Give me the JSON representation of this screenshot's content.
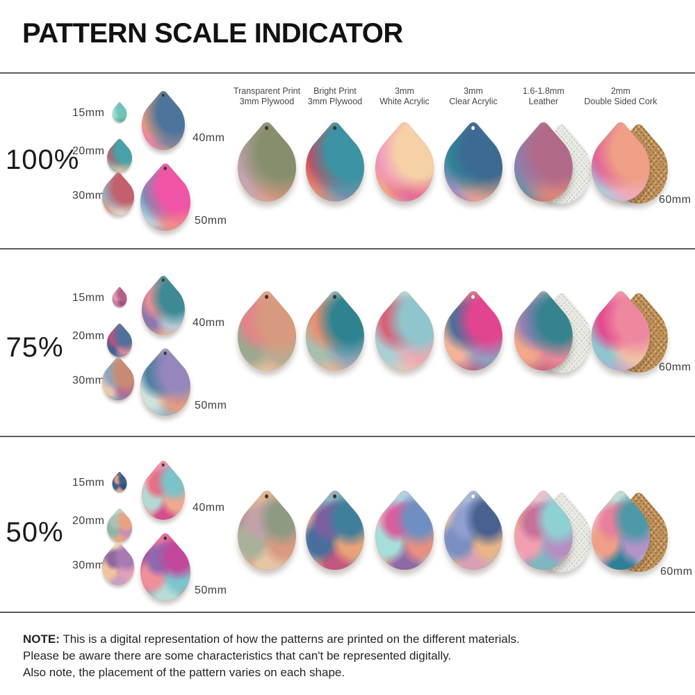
{
  "title": "PATTERN SCALE INDICATOR",
  "column_headers": [
    {
      "line1": "Transparent Print",
      "line2": "3mm Plywood"
    },
    {
      "line1": "Bright Print",
      "line2": "3mm Plywood"
    },
    {
      "line1": "3mm",
      "line2": "White Acrylic"
    },
    {
      "line1": "3mm",
      "line2": "Clear Acrylic"
    },
    {
      "line1": "1.6-1.8mm",
      "line2": "Leather"
    },
    {
      "line1": "2mm",
      "line2": "Double Sided Cork"
    }
  ],
  "row_size_labels": [
    "15mm",
    "20mm",
    "30mm",
    "40mm",
    "50mm"
  ],
  "main_size_label": "60mm",
  "sections": [
    {
      "scale": "100%",
      "cluster": [
        [
          "#8fd2c8",
          "#6fc3b8",
          "#b8e4da",
          "#5aa89e"
        ],
        [
          "#d9bca8",
          "#48a0a8",
          "#c25a64",
          "#e8c4a0",
          "#8fb8b0"
        ],
        [
          "#e4d0c5",
          "#c2606e",
          "#8fb5c6",
          "#e0e8e0",
          "#d69e8a",
          "#b7c9cf"
        ],
        [
          "#7e9ab4",
          "#4d749b",
          "#e09a7c",
          "#978a98",
          "#ee82a8",
          "#c7b4a4",
          "#30588a"
        ],
        [
          "#ec9cba",
          "#f055a5",
          "#6e90b6",
          "#ef9d82",
          "#b5d2e2",
          "#d8418c",
          "#f4b8cc"
        ]
      ],
      "main_drops": [
        {
          "material": "transparent-print-plywood",
          "colors": [
            "#c3a68c",
            "#858f6d",
            "#b8a0a1",
            "#d8967e",
            "#c9a6b4",
            "#e2b794",
            "#a9936d"
          ]
        },
        {
          "material": "bright-print-plywood",
          "colors": [
            "#bbd2d8",
            "#3b93a3",
            "#c9485c",
            "#7a90ac",
            "#e08a74",
            "#a6c3ce",
            "#d86a62"
          ]
        },
        {
          "material": "white-acrylic",
          "colors": [
            "#f5bba6",
            "#f6d1a8",
            "#ee8fc0",
            "#e2528f",
            "#f2a58a",
            "#c2dce2",
            "#f7c6b2"
          ]
        },
        {
          "material": "clear-acrylic",
          "colors": [
            "#7a94b4",
            "#3c6a92",
            "#2f8a9a",
            "#f0a989",
            "#9b8ec2",
            "#ee87a8",
            "#46648e"
          ]
        },
        {
          "material": "leather",
          "back": "suede",
          "colors": [
            "#d7a8b2",
            "#b06a88",
            "#8f7fae",
            "#e88f7a",
            "#6f8fa8",
            "#c84b60",
            "#caa0c0"
          ]
        },
        {
          "material": "double-sided-cork",
          "back": "cork",
          "colors": [
            "#f2b5a0",
            "#ee9f86",
            "#e1559c",
            "#f2aec8",
            "#a9ccd8",
            "#b5a5cc",
            "#f4c0a8"
          ]
        }
      ]
    },
    {
      "scale": "75%",
      "cluster": [
        [
          "#c87f9f",
          "#b2628a",
          "#e0a2b2",
          "#9c4f7c"
        ],
        [
          "#6e87ac",
          "#51709b",
          "#c2507c",
          "#e0899a",
          "#46608f"
        ],
        [
          "#ddaa8d",
          "#c88a72",
          "#8aa8c3",
          "#b46a96",
          "#e8c8b0",
          "#7c98b5"
        ],
        [
          "#4f9aa0",
          "#3e8a94",
          "#e88f94",
          "#b9c9d8",
          "#8b76ad",
          "#eda68f",
          "#2f7a85"
        ],
        [
          "#b5a8cc",
          "#9587bd",
          "#4f7fa0",
          "#e89a7c",
          "#cfe2da",
          "#8fb5c9",
          "#7a6aa8"
        ]
      ],
      "main_drops": [
        {
          "material": "transparent-print-plywood",
          "colors": [
            "#e1b093",
            "#d89a7e",
            "#e0848a",
            "#b9aa90",
            "#9aa88f",
            "#eec5a2",
            "#c79080"
          ]
        },
        {
          "material": "bright-print-plywood",
          "colors": [
            "#cfdcd8",
            "#2f8391",
            "#e98f72",
            "#8aa4b8",
            "#a8bfae",
            "#f2b493",
            "#47909c"
          ]
        },
        {
          "material": "white-acrylic",
          "colors": [
            "#d8e8e2",
            "#8fc5cc",
            "#d95f73",
            "#f0a8b5",
            "#a8cfd4",
            "#e8c9b5",
            "#ef95a2"
          ]
        },
        {
          "material": "clear-acrylic",
          "colors": [
            "#eb9d82",
            "#e2458f",
            "#4a6f99",
            "#8f9fc2",
            "#f2b398",
            "#b5638f",
            "#f08f6f"
          ]
        },
        {
          "material": "leather",
          "back": "suede",
          "colors": [
            "#cdb8c8",
            "#35838f",
            "#8f7fb2",
            "#e8899a",
            "#f2a88a",
            "#c2657f",
            "#9fc0c5"
          ]
        },
        {
          "material": "double-sided-cork",
          "back": "cork",
          "colors": [
            "#f0aab8",
            "#ee88a0",
            "#e2498f",
            "#f2c2a5",
            "#8fc5d0",
            "#b8a8d0",
            "#f4b5c4"
          ]
        }
      ]
    },
    {
      "scale": "50%",
      "cluster": [
        [
          "#53729c",
          "#3c5f8b",
          "#e89a82",
          "#2f4f7e"
        ],
        [
          "#b8d8c9",
          "#e8a482",
          "#a8c2b5",
          "#cc8fb2",
          "#8fb5a4"
        ],
        [
          "#e8d5b8",
          "#a87ab2",
          "#8f68a0",
          "#e2a0b8",
          "#f0c2a0",
          "#c9a0c2"
        ],
        [
          "#ef8fa8",
          "#7cc2c9",
          "#e86f85",
          "#f0a88f",
          "#b5d8d2",
          "#d44f8c",
          "#f2b8c2"
        ],
        [
          "#e2739c",
          "#c2489c",
          "#8f68b0",
          "#7cc5cc",
          "#ef8f9c",
          "#b5dcd8",
          "#a84f9c"
        ]
      ],
      "main_drops": [
        {
          "material": "transparent-print-plywood",
          "colors": [
            "#e2b495",
            "#8f9a85",
            "#c2a2a8",
            "#d89a80",
            "#a8b29a",
            "#e8c5a2",
            "#bc8f95"
          ]
        },
        {
          "material": "bright-print-plywood",
          "colors": [
            "#8fb2c2",
            "#3f7f9c",
            "#7c5fa0",
            "#e8a275",
            "#4a6e9c",
            "#c2577f",
            "#efb58f"
          ]
        },
        {
          "material": "white-acrylic",
          "colors": [
            "#b2cfe0",
            "#6f8fc2",
            "#d85f9c",
            "#e88f80",
            "#a5e0d8",
            "#8f68a8",
            "#f2b5c2"
          ]
        },
        {
          "material": "clear-acrylic",
          "colors": [
            "#a8b8d8",
            "#48618f",
            "#8f9fd0",
            "#e8b588",
            "#7c8fc2",
            "#d8a0b5",
            "#f2c9a0"
          ]
        },
        {
          "material": "leather",
          "back": "suede",
          "colors": [
            "#e8c2cc",
            "#8fd0d4",
            "#c86f9c",
            "#b58fc2",
            "#ef9fae",
            "#7cb8c2",
            "#e8a88f"
          ]
        },
        {
          "material": "double-sided-cork",
          "back": "cork",
          "colors": [
            "#c2dcd8",
            "#4f98a8",
            "#e87f9c",
            "#b293c9",
            "#ef9f88",
            "#2f7f99",
            "#f0b8c9"
          ]
        }
      ]
    }
  ],
  "note": {
    "label": "NOTE:",
    "lines": [
      "This is a digital representation of how the patterns are printed on the different materials.",
      "Please be aware there are some characteristics that can't be represented digitally.",
      "Also note, the placement of the pattern varies on each shape."
    ]
  },
  "colors": {
    "background": "#ffffff",
    "separator": "#5c5c5c",
    "title_text": "#121212",
    "label_text": "#3d3d3d",
    "header_text": "#474747",
    "suede_back": "#e0e3db",
    "cork_back": "#c1925b",
    "hole_dark": "#3f332a",
    "hole_light": "#fafafa"
  }
}
